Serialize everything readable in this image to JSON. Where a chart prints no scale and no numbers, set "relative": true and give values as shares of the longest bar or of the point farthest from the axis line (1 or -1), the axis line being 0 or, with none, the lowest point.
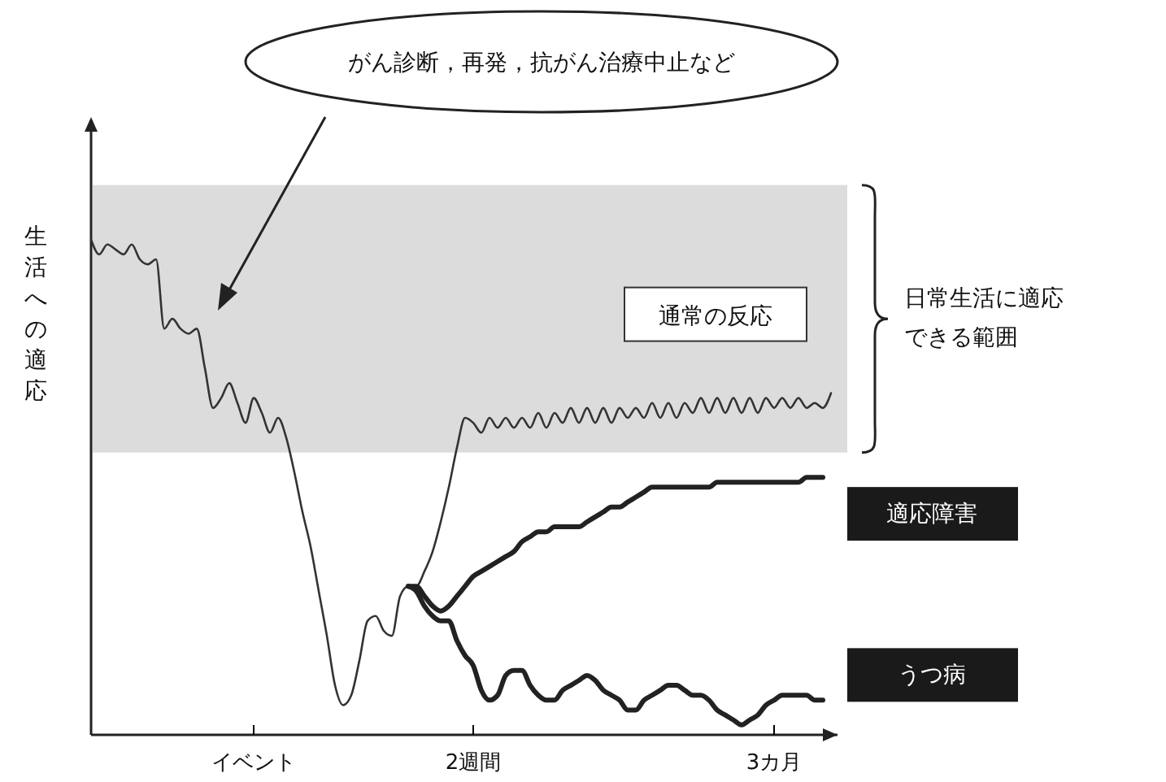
{
  "chart_data": {
    "type": "line",
    "relative": true,
    "ylabel": "生活への適応",
    "categories": [
      null,
      null,
      null,
      null,
      null,
      null,
      null,
      null,
      null,
      null,
      null,
      null,
      null,
      null,
      null,
      null,
      null,
      null,
      null,
      null,
      "イベント",
      null,
      null,
      null,
      null,
      null,
      null,
      null,
      null,
      null,
      null,
      null,
      null,
      null,
      null,
      null,
      null,
      null,
      null,
      null,
      null,
      null,
      null,
      null,
      null,
      null,
      null,
      "2週間",
      null,
      null,
      null,
      null,
      null,
      null,
      null,
      null,
      null,
      null,
      null,
      null,
      null,
      null,
      null,
      null,
      null,
      null,
      null,
      null,
      null,
      null,
      null,
      null,
      null,
      null,
      null,
      null,
      null,
      null,
      null,
      null,
      null,
      null,
      null,
      null,
      "3カ月",
      null,
      null,
      null,
      null,
      null,
      null,
      null
    ],
    "series": [
      {
        "name": "通常の反応",
        "color": "#333333",
        "values": [
          1.0,
          0.97,
          0.99,
          0.98,
          0.97,
          0.99,
          0.96,
          0.95,
          0.96,
          0.82,
          0.84,
          0.82,
          0.81,
          0.82,
          0.74,
          0.66,
          0.68,
          0.71,
          0.67,
          0.63,
          0.68,
          0.65,
          0.61,
          0.64,
          0.6,
          0.53,
          0.45,
          0.38,
          0.29,
          0.2,
          0.1,
          0.06,
          0.08,
          0.15,
          0.23,
          0.24,
          0.21,
          0.2,
          0.28,
          0.3,
          0.3,
          0.33,
          0.37,
          0.43,
          0.5,
          0.58,
          0.64,
          0.63,
          0.61,
          0.64,
          0.62,
          0.64,
          0.62,
          0.64,
          0.62,
          0.65,
          0.62,
          0.65,
          0.63,
          0.66,
          0.63,
          0.66,
          0.63,
          0.66,
          0.63,
          0.66,
          0.64,
          0.66,
          0.64,
          0.67,
          0.64,
          0.67,
          0.64,
          0.67,
          0.65,
          0.68,
          0.65,
          0.68,
          0.65,
          0.68,
          0.65,
          0.68,
          0.65,
          0.68,
          0.66,
          0.68,
          0.66,
          0.68,
          0.66,
          0.67,
          0.66,
          0.69
        ]
      },
      {
        "name": "適応障害",
        "color": "#222222",
        "values": [
          null,
          null,
          null,
          null,
          null,
          null,
          null,
          null,
          null,
          null,
          null,
          null,
          null,
          null,
          null,
          null,
          null,
          null,
          null,
          null,
          null,
          null,
          null,
          null,
          null,
          null,
          null,
          null,
          null,
          null,
          null,
          null,
          null,
          null,
          null,
          null,
          null,
          null,
          null,
          0.3,
          0.3,
          0.28,
          0.26,
          0.25,
          0.26,
          0.28,
          0.3,
          0.32,
          0.33,
          0.34,
          0.35,
          0.36,
          0.37,
          0.39,
          0.4,
          0.41,
          0.41,
          0.42,
          0.42,
          0.42,
          0.42,
          0.43,
          0.44,
          0.45,
          0.46,
          0.46,
          0.47,
          0.48,
          0.49,
          0.5,
          0.5,
          0.5,
          0.5,
          0.5,
          0.5,
          0.5,
          0.5,
          0.51,
          0.51,
          0.51,
          0.51,
          0.51,
          0.51,
          0.51,
          0.51,
          0.51,
          0.51,
          0.51,
          0.52,
          0.52,
          0.52,
          null
        ]
      },
      {
        "name": "うつ病",
        "color": "#222222",
        "values": [
          null,
          null,
          null,
          null,
          null,
          null,
          null,
          null,
          null,
          null,
          null,
          null,
          null,
          null,
          null,
          null,
          null,
          null,
          null,
          null,
          null,
          null,
          null,
          null,
          null,
          null,
          null,
          null,
          null,
          null,
          null,
          null,
          null,
          null,
          null,
          null,
          null,
          null,
          null,
          0.3,
          0.29,
          0.26,
          0.24,
          0.23,
          0.23,
          0.19,
          0.16,
          0.14,
          0.09,
          0.07,
          0.08,
          0.12,
          0.13,
          0.13,
          0.1,
          0.08,
          0.07,
          0.07,
          0.09,
          0.1,
          0.11,
          0.12,
          0.11,
          0.09,
          0.08,
          0.07,
          0.05,
          0.05,
          0.07,
          0.08,
          0.09,
          0.1,
          0.1,
          0.09,
          0.08,
          0.08,
          0.07,
          0.05,
          0.04,
          0.03,
          0.02,
          0.03,
          0.04,
          0.06,
          0.07,
          0.08,
          0.08,
          0.08,
          0.08,
          0.07,
          0.07,
          null
        ]
      }
    ],
    "bands": [
      {
        "axis": "y",
        "from": 0.57,
        "to": 1.11,
        "label": "日常生活に適応できる範囲",
        "color": "#dcdcdc"
      }
    ],
    "annotations": [
      "がん診断，再発，抗がん治療中止など"
    ]
  }
}
